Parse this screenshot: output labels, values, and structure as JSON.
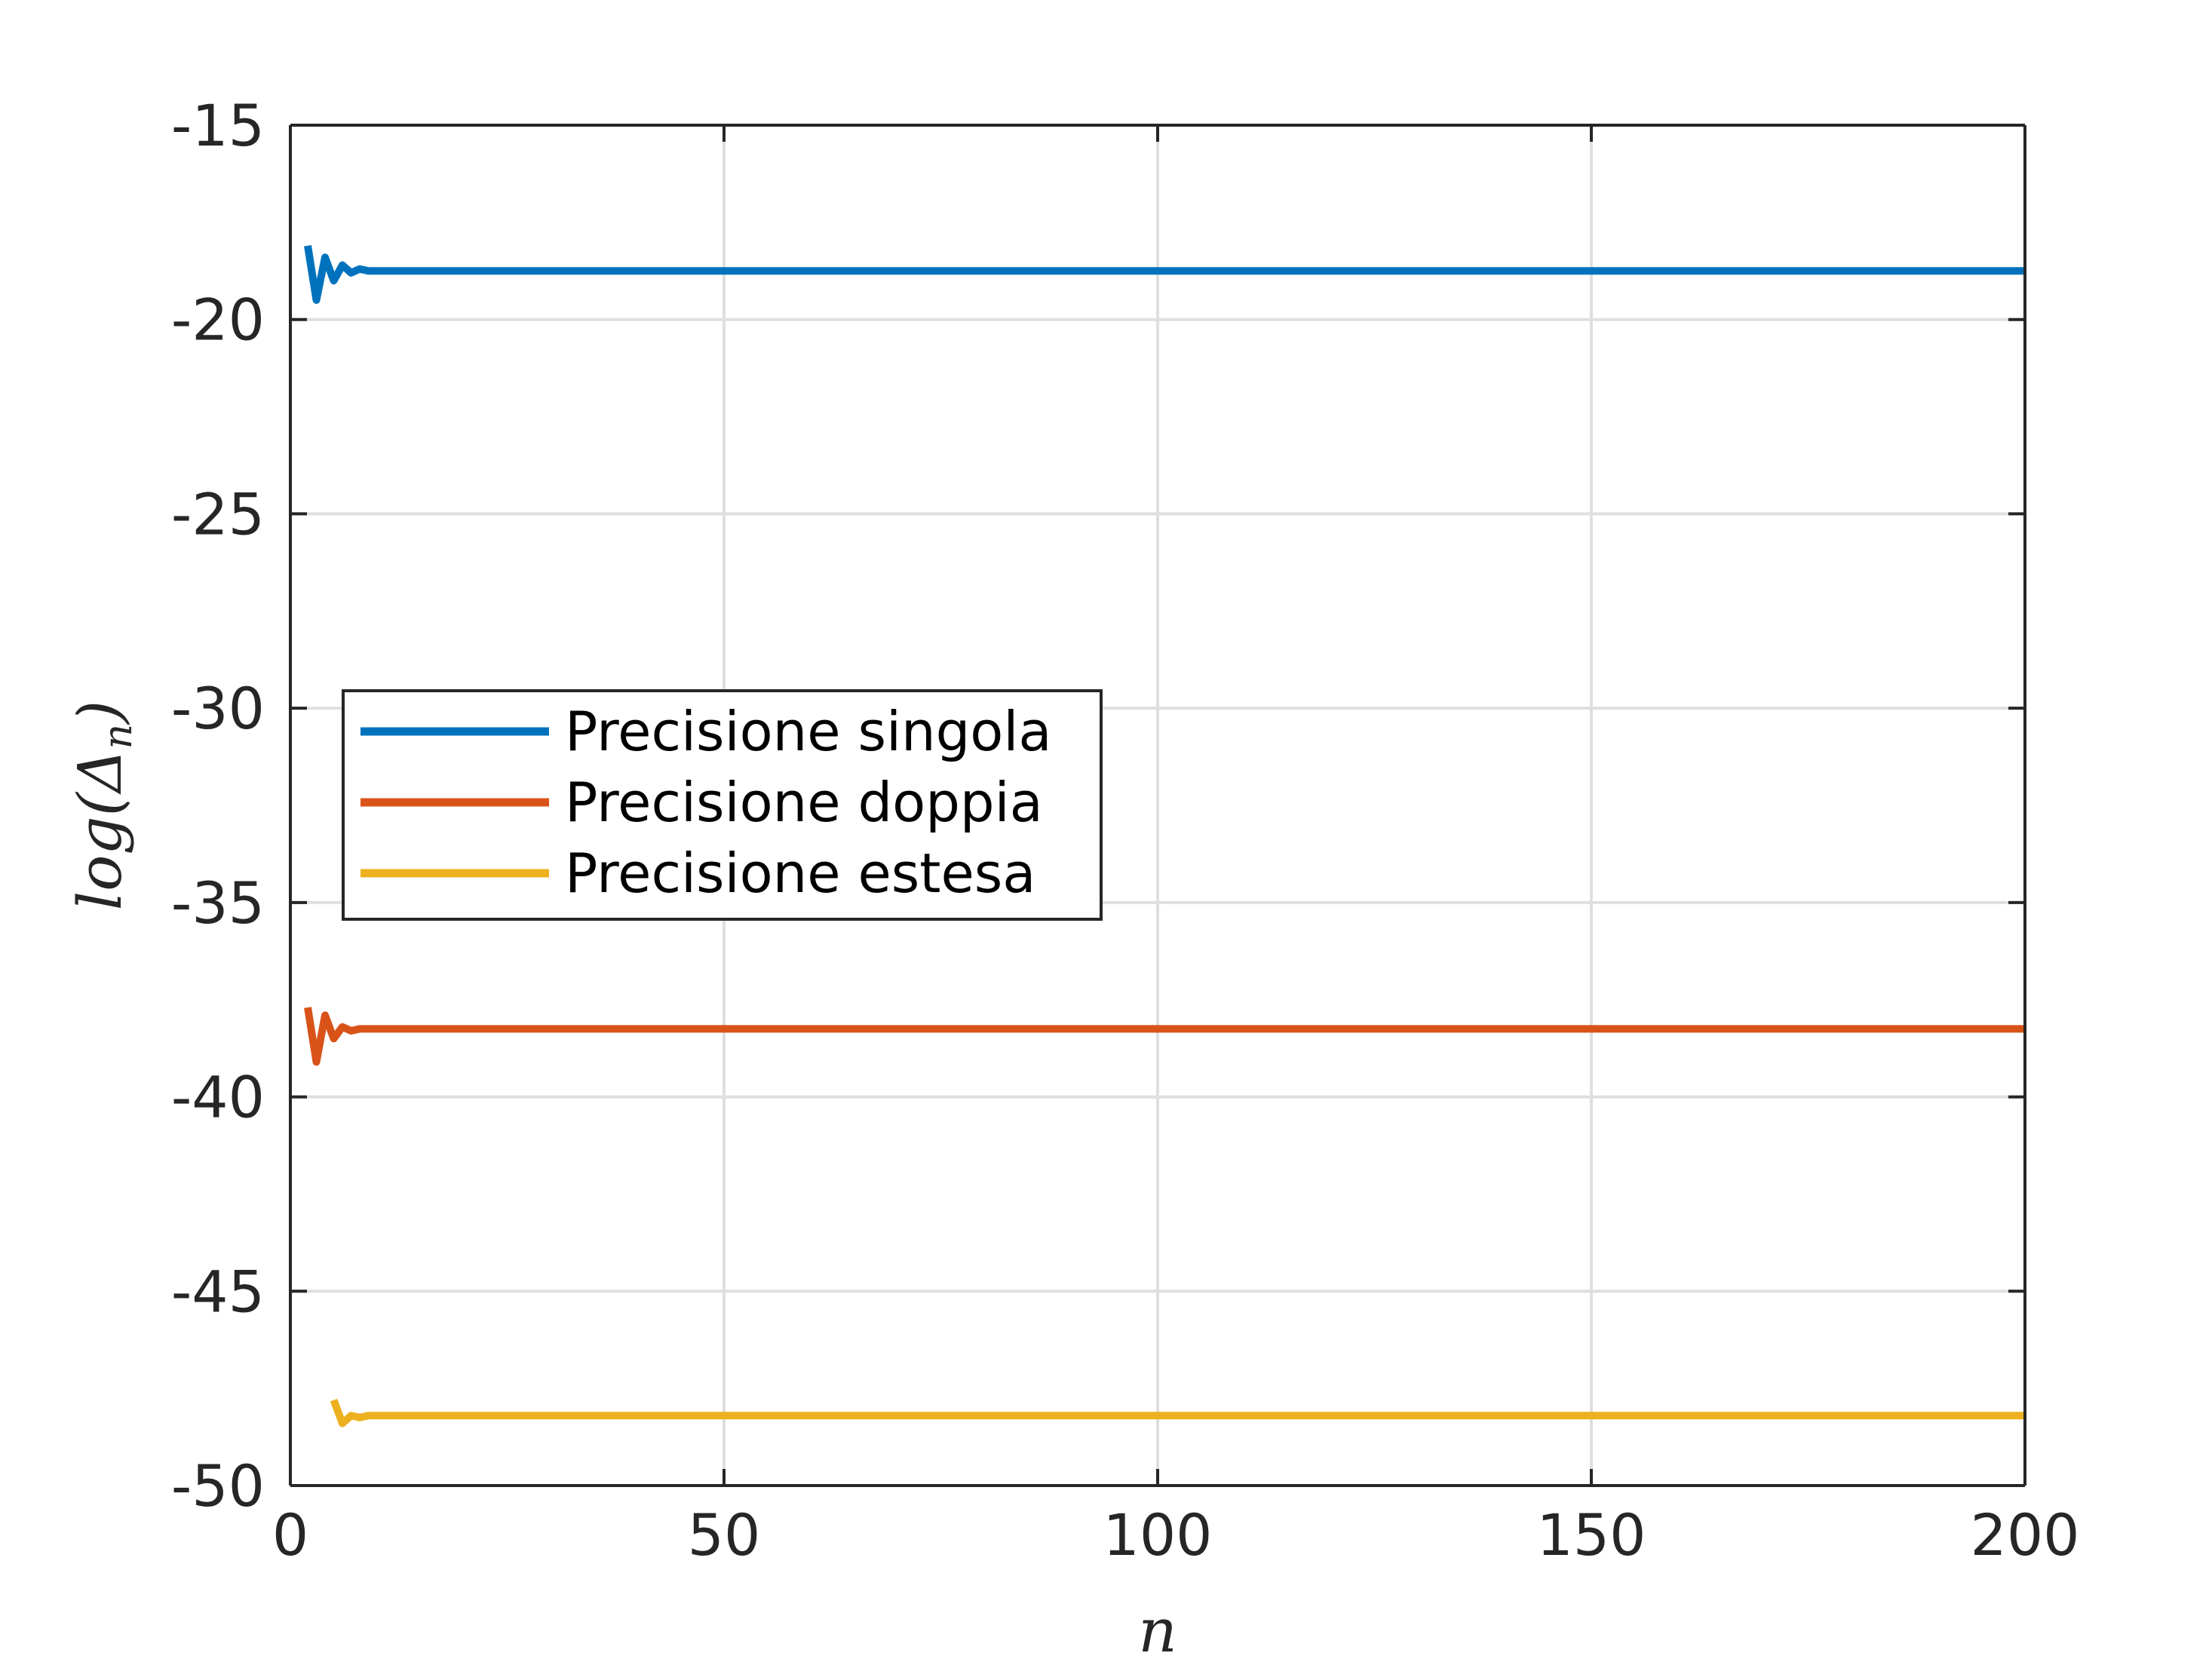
{
  "chart_data": {
    "type": "line",
    "title": "",
    "xlabel": "n",
    "ylabel": "log(Δ_n)",
    "ylabel_parts": {
      "base": "log(Δ",
      "subscript": "n",
      "close": ")"
    },
    "xlim": [
      0,
      200
    ],
    "ylim": [
      -50,
      -15
    ],
    "xticks": [
      0,
      50,
      100,
      150,
      200
    ],
    "xtick_labels": [
      "0",
      "50",
      "100",
      "150",
      "200"
    ],
    "yticks": [
      -50,
      -45,
      -40,
      -35,
      -30,
      -25,
      -20,
      -15
    ],
    "ytick_labels": [
      "-50",
      "-45",
      "-40",
      "-35",
      "-30",
      "-25",
      "-20",
      "-15"
    ],
    "grid": true,
    "legend_position": "middle-left",
    "series": [
      {
        "name": "Precisione singola",
        "color": "#0072bd",
        "x": [
          2,
          3,
          4,
          5,
          6,
          7,
          8,
          9,
          200
        ],
        "y": [
          -18.1,
          -19.5,
          -18.4,
          -19.0,
          -18.6,
          -18.8,
          -18.7,
          -18.75,
          -18.75
        ]
      },
      {
        "name": "Precisione doppia",
        "color": "#d95319",
        "x": [
          2,
          3,
          4,
          5,
          6,
          7,
          8,
          9,
          200
        ],
        "y": [
          -37.7,
          -39.1,
          -37.9,
          -38.5,
          -38.2,
          -38.3,
          -38.25,
          -38.25,
          -38.25
        ]
      },
      {
        "name": "Precisione estesa",
        "color": "#edb120",
        "x": [
          5,
          6,
          7,
          8,
          9,
          200
        ],
        "y": [
          -47.8,
          -48.4,
          -48.2,
          -48.25,
          -48.2,
          -48.2
        ]
      }
    ]
  }
}
